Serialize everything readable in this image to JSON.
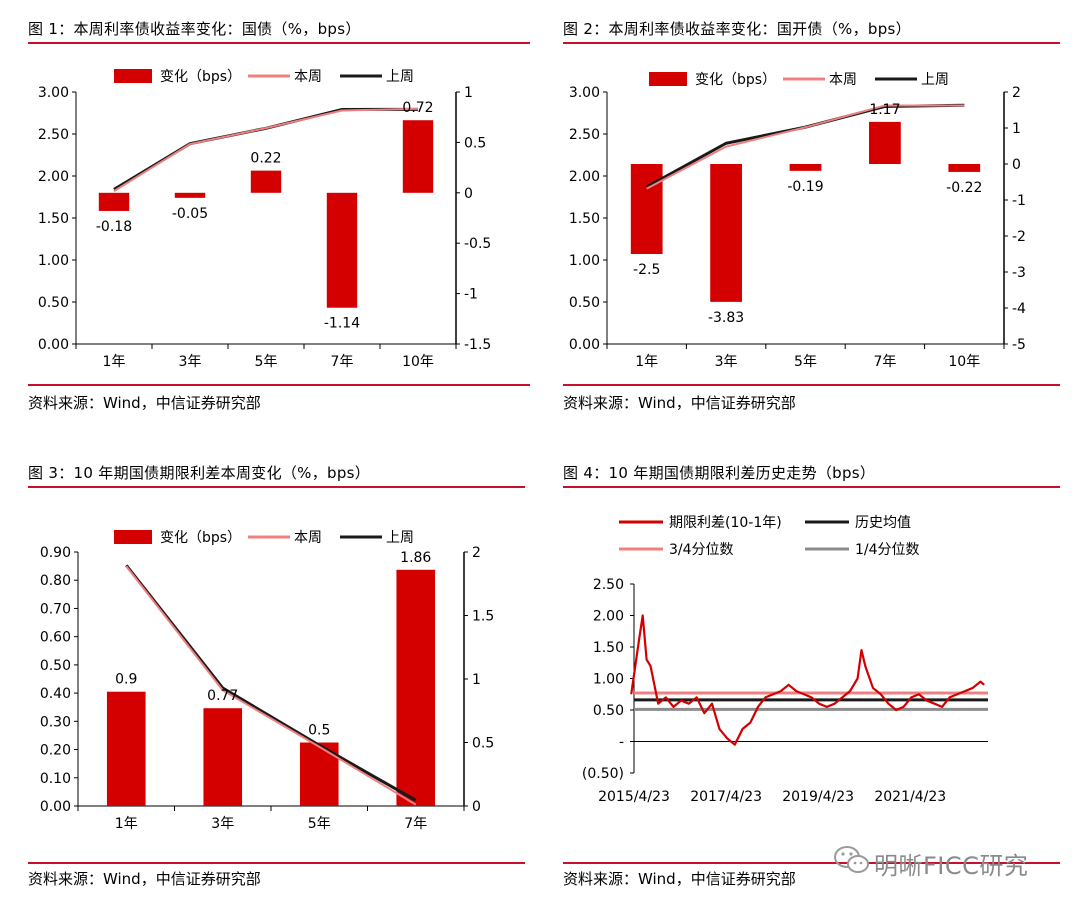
{
  "colors": {
    "accent": "#c8102e",
    "bar": "#d40000",
    "this_week": "#f08080",
    "last_week": "#1a1a1a",
    "grey": "#8c8c8c"
  },
  "source_text": "资料来源：Wind，中信证券研究部",
  "watermark": {
    "icon": "wechat-icon",
    "text": "明晰FICC研究"
  },
  "charts": [
    {
      "title": "图 1：本周利率债收益率变化：国债（%，bps）",
      "legend": {
        "bar": "变化（bps）",
        "line1": "本周",
        "line2": "上周"
      }
    },
    {
      "title": "图 2：本周利率债收益率变化：国开债（%，bps）",
      "legend": {
        "bar": "变化（bps）",
        "line1": "本周",
        "line2": "上周"
      }
    },
    {
      "title": "图 3：10 年期国债期限利差本周变化（%，bps）",
      "legend": {
        "bar": "变化（bps）",
        "line1": "本周",
        "line2": "上周"
      }
    },
    {
      "title": "图 4：10 年期国债期限利差历史走势（bps）",
      "legend": {
        "s1": "期限利差(10-1年)",
        "s2": "历史均值",
        "s3": "3/4分位数",
        "s4": "1/4分位数"
      }
    }
  ],
  "chart_data": [
    {
      "type": "bar",
      "categories": [
        "1年",
        "3年",
        "5年",
        "7年",
        "10年"
      ],
      "series": [
        {
          "name": "变化（bps）",
          "values": [
            -0.18,
            -0.05,
            0.22,
            -1.14,
            0.72
          ],
          "axis": "right"
        },
        {
          "name": "本周",
          "values": [
            1.82,
            2.38,
            2.57,
            2.78,
            2.8
          ],
          "axis": "left"
        },
        {
          "name": "上周",
          "values": [
            1.84,
            2.385,
            2.568,
            2.792,
            2.793
          ],
          "axis": "left"
        }
      ],
      "data_labels": [
        "-0.18",
        "-0.05",
        "0.22",
        "-1.14",
        "0.72"
      ],
      "ylim_left": [
        0,
        3
      ],
      "yticks_left": [
        "3.00",
        "2.50",
        "2.00",
        "1.50",
        "1.00",
        "0.50",
        "0.00"
      ],
      "ylim_right": [
        -1.5,
        1
      ],
      "yticks_right": [
        "1",
        "0.5",
        "0",
        "-0.5",
        "-1",
        "-1.5"
      ]
    },
    {
      "type": "bar",
      "categories": [
        "1年",
        "3年",
        "5年",
        "7年",
        "10年"
      ],
      "series": [
        {
          "name": "变化（bps）",
          "values": [
            -2.5,
            -3.83,
            -0.19,
            1.17,
            -0.22
          ],
          "axis": "right"
        },
        {
          "name": "本周",
          "values": [
            1.85,
            2.35,
            2.58,
            2.84,
            2.84
          ],
          "axis": "left"
        },
        {
          "name": "上周",
          "values": [
            1.87,
            2.39,
            2.582,
            2.828,
            2.842
          ],
          "axis": "left"
        }
      ],
      "data_labels": [
        "-2.5",
        "-3.83",
        "-0.19",
        "1.17",
        "-0.22"
      ],
      "ylim_left": [
        0,
        3
      ],
      "yticks_left": [
        "3.00",
        "2.50",
        "2.00",
        "1.50",
        "1.00",
        "0.50",
        "0.00"
      ],
      "ylim_right": [
        -5,
        2
      ],
      "yticks_right": [
        "2",
        "1",
        "0",
        "-1",
        "-2",
        "-3",
        "-4",
        "-5"
      ]
    },
    {
      "type": "bar",
      "categories": [
        "1年",
        "3年",
        "5年",
        "7年"
      ],
      "series": [
        {
          "name": "变化（bps）",
          "values": [
            0.9,
            0.77,
            0.5,
            1.86
          ],
          "axis": "right"
        },
        {
          "name": "本周",
          "values": [
            0.85,
            0.41,
            0.21,
            0.005
          ],
          "axis": "left"
        },
        {
          "name": "上周",
          "values": [
            0.853,
            0.418,
            0.215,
            0.02
          ],
          "axis": "left"
        }
      ],
      "data_labels": [
        "0.9",
        "0.77",
        "0.5",
        "1.86"
      ],
      "ylim_left": [
        0,
        0.9
      ],
      "yticks_left": [
        "0.90",
        "0.80",
        "0.70",
        "0.60",
        "0.50",
        "0.40",
        "0.30",
        "0.20",
        "0.10",
        "0.00"
      ],
      "ylim_right": [
        0,
        2
      ],
      "yticks_right": [
        "2",
        "1.5",
        "1",
        "0.5",
        "0"
      ]
    },
    {
      "type": "line",
      "x_ticks": [
        "2015/4/23",
        "2017/4/23",
        "2019/4/23",
        "2021/4/23"
      ],
      "xlim": [
        "2015-04-23",
        "2022-12-31"
      ],
      "ylim": [
        -0.5,
        2.5
      ],
      "yticks": [
        "2.50",
        "2.00",
        "1.50",
        "1.00",
        "0.50",
        "-",
        "(0.50)"
      ],
      "series": [
        {
          "name": "期限利差(10-1年)",
          "x": [
            "2015-04",
            "2015-06",
            "2015-07",
            "2015-08",
            "2015-09",
            "2015-11",
            "2016-01",
            "2016-03",
            "2016-05",
            "2016-07",
            "2016-09",
            "2016-11",
            "2017-01",
            "2017-03",
            "2017-05",
            "2017-07",
            "2017-09",
            "2017-11",
            "2018-01",
            "2018-03",
            "2018-05",
            "2018-07",
            "2018-09",
            "2018-11",
            "2019-01",
            "2019-03",
            "2019-05",
            "2019-07",
            "2019-09",
            "2019-11",
            "2020-01",
            "2020-03",
            "2020-04",
            "2020-05",
            "2020-07",
            "2020-09",
            "2020-11",
            "2021-01",
            "2021-03",
            "2021-05",
            "2021-07",
            "2021-09",
            "2021-11",
            "2022-01",
            "2022-03",
            "2022-05",
            "2022-07",
            "2022-09",
            "2022-11",
            "2022-12"
          ],
          "values": [
            0.75,
            1.6,
            2.0,
            1.3,
            1.2,
            0.6,
            0.7,
            0.55,
            0.65,
            0.6,
            0.7,
            0.45,
            0.6,
            0.2,
            0.05,
            -0.05,
            0.2,
            0.3,
            0.55,
            0.7,
            0.75,
            0.8,
            0.9,
            0.8,
            0.75,
            0.7,
            0.6,
            0.55,
            0.6,
            0.7,
            0.8,
            1.0,
            1.45,
            1.2,
            0.85,
            0.75,
            0.6,
            0.5,
            0.55,
            0.7,
            0.75,
            0.65,
            0.6,
            0.55,
            0.7,
            0.75,
            0.8,
            0.85,
            0.95,
            0.9
          ]
        },
        {
          "name": "历史均值",
          "values": [
            0.66
          ]
        },
        {
          "name": "3/4分位数",
          "values": [
            0.77
          ]
        },
        {
          "name": "1/4分位数",
          "values": [
            0.51
          ]
        }
      ]
    }
  ]
}
